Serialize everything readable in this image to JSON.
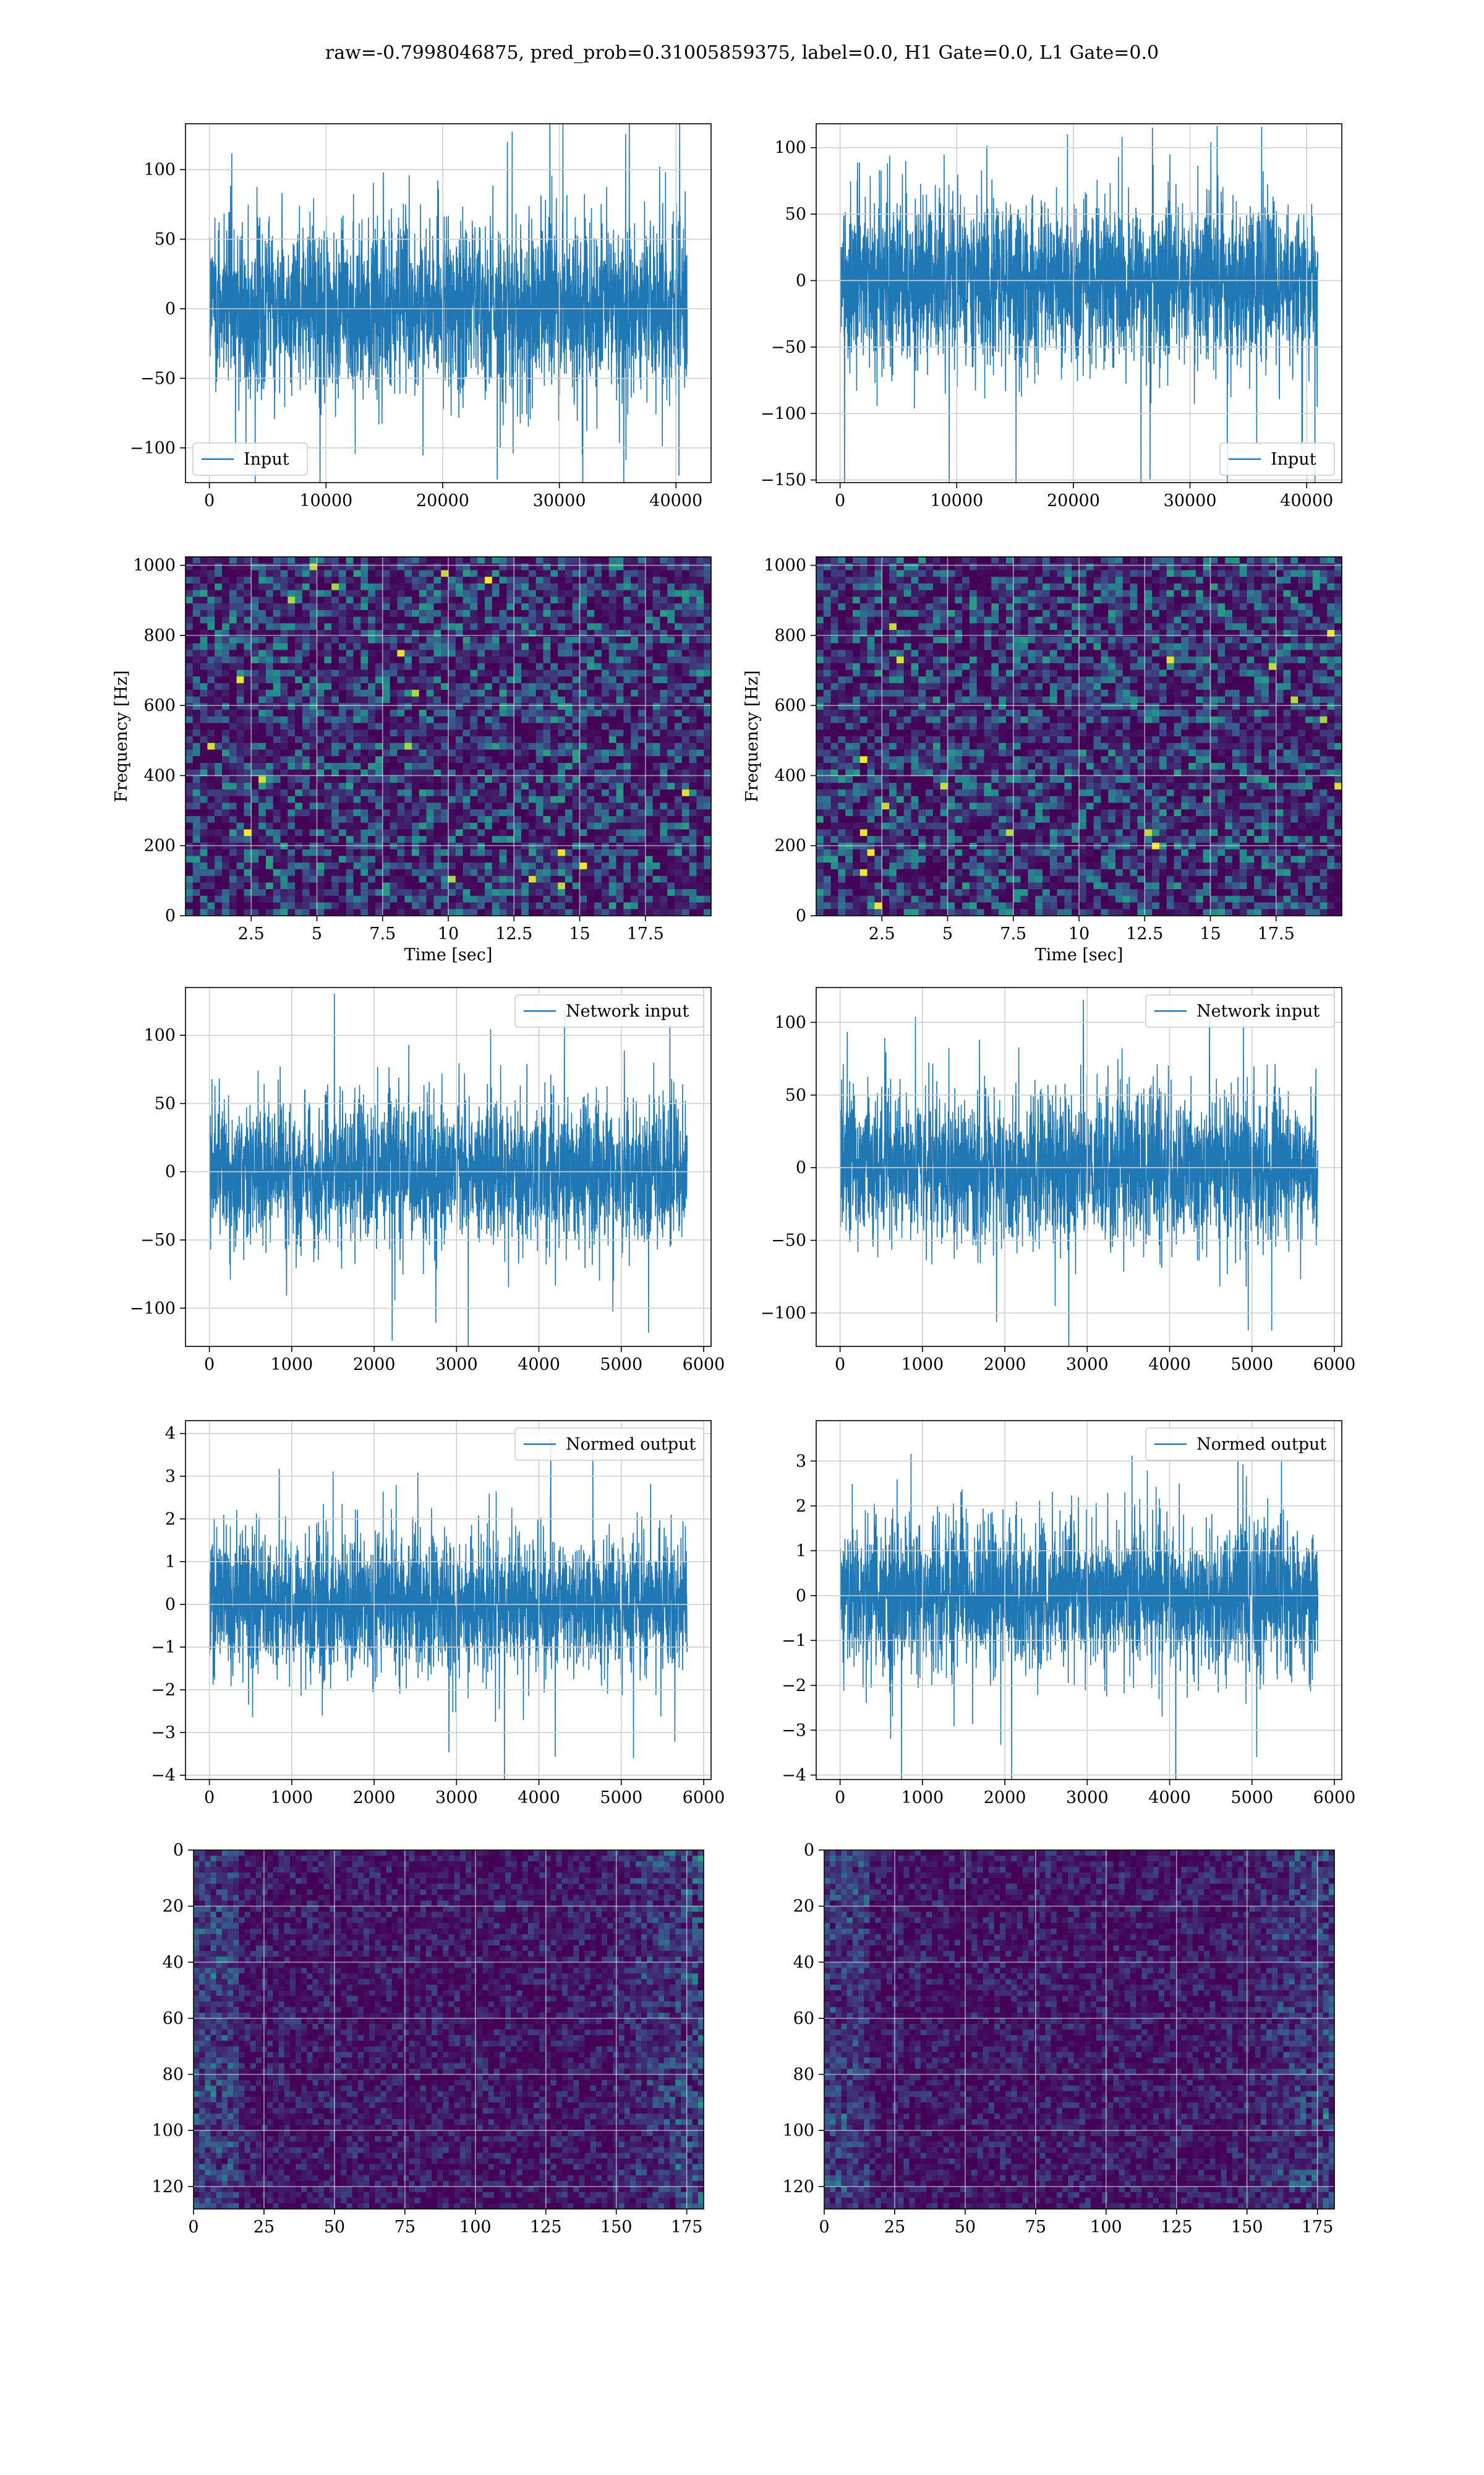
{
  "suptitle": "raw=-0.7998046875, pred_prob=0.31005859375, label=0.0, H1 Gate=0.0, L1 Gate=0.0",
  "colors": {
    "line": "#1f77b4",
    "grid": "#cfcfcf",
    "viridis_dark": "#440154",
    "viridis_mid": "#21918c",
    "viridis_bright": "#fde725"
  },
  "chart_data": [
    {
      "id": "p1",
      "type": "line",
      "legend": "Input",
      "legend_loc": "lower-left",
      "x_range": [
        0,
        40960
      ],
      "amplitude": 30,
      "spikes": [
        120,
        -120
      ],
      "xlim": [
        -2048,
        43008
      ],
      "ylim": [
        -125,
        133
      ],
      "xticks": [
        0,
        10000,
        20000,
        30000,
        40000
      ],
      "yticks": [
        -100,
        -50,
        0,
        50,
        100
      ],
      "grid": true
    },
    {
      "id": "p2",
      "type": "line",
      "legend": "Input",
      "legend_loc": "lower-right",
      "x_range": [
        0,
        40960
      ],
      "amplitude": 30,
      "spikes": [
        115,
        -138
      ],
      "xlim": [
        -2048,
        43008
      ],
      "ylim": [
        -152,
        118
      ],
      "xticks": [
        0,
        10000,
        20000,
        30000,
        40000
      ],
      "yticks": [
        -150,
        -100,
        -50,
        0,
        50,
        100
      ],
      "grid": true
    },
    {
      "id": "p3",
      "type": "heatmap",
      "xlabel": "Time [sec]",
      "ylabel": "Frequency [Hz]",
      "xlim": [
        0,
        20
      ],
      "ylim": [
        0,
        1024
      ],
      "xticks": [
        2.5,
        5.0,
        7.5,
        10.0,
        12.5,
        15.0,
        17.5
      ],
      "yticks": [
        0,
        200,
        400,
        600,
        800,
        1000
      ],
      "grid": true
    },
    {
      "id": "p4",
      "type": "heatmap",
      "xlabel": "Time [sec]",
      "ylabel": "Frequency [Hz]",
      "xlim": [
        0,
        20
      ],
      "ylim": [
        0,
        1024
      ],
      "xticks": [
        2.5,
        5.0,
        7.5,
        10.0,
        12.5,
        15.0,
        17.5
      ],
      "yticks": [
        0,
        200,
        400,
        600,
        800,
        1000
      ],
      "grid": true
    },
    {
      "id": "p5",
      "type": "line",
      "legend": "Network input",
      "legend_loc": "upper-right",
      "x_range": [
        0,
        5800
      ],
      "amplitude": 25,
      "spikes": [
        118,
        -118
      ],
      "xlim": [
        -290,
        6090
      ],
      "ylim": [
        -128,
        135
      ],
      "xticks": [
        0,
        1000,
        2000,
        3000,
        4000,
        5000,
        6000
      ],
      "yticks": [
        -100,
        -50,
        0,
        50,
        100
      ],
      "grid": true
    },
    {
      "id": "p6",
      "type": "line",
      "legend": "Network input",
      "legend_loc": "upper-right",
      "x_range": [
        0,
        5800
      ],
      "amplitude": 25,
      "spikes": [
        112,
        -112
      ],
      "xlim": [
        -290,
        6090
      ],
      "ylim": [
        -123,
        124
      ],
      "xticks": [
        0,
        1000,
        2000,
        3000,
        4000,
        5000,
        6000
      ],
      "yticks": [
        -100,
        -50,
        0,
        50,
        100
      ],
      "grid": true
    },
    {
      "id": "p7",
      "type": "line",
      "legend": "Normed output",
      "legend_loc": "upper-right",
      "x_range": [
        0,
        5800
      ],
      "amplitude": 0.8,
      "spikes": [
        3.9,
        -3.6
      ],
      "xlim": [
        -290,
        6090
      ],
      "ylim": [
        -4.1,
        4.3
      ],
      "xticks": [
        0,
        1000,
        2000,
        3000,
        4000,
        5000,
        6000
      ],
      "yticks": [
        -4,
        -3,
        -2,
        -1,
        0,
        1,
        2,
        3,
        4
      ],
      "grid": true
    },
    {
      "id": "p8",
      "type": "line",
      "legend": "Normed output",
      "legend_loc": "upper-right",
      "x_range": [
        0,
        5800
      ],
      "amplitude": 0.8,
      "spikes": [
        3.6,
        -3.6
      ],
      "xlim": [
        -290,
        6090
      ],
      "ylim": [
        -4.1,
        3.9
      ],
      "xticks": [
        0,
        1000,
        2000,
        3000,
        4000,
        5000,
        6000
      ],
      "yticks": [
        -4,
        -3,
        -2,
        -1,
        0,
        1,
        2,
        3
      ],
      "grid": true
    },
    {
      "id": "p9",
      "type": "heatmap",
      "inverted_y": true,
      "xlim": [
        0,
        181
      ],
      "ylim": [
        128,
        0
      ],
      "xticks": [
        0,
        25,
        50,
        75,
        100,
        125,
        150,
        175
      ],
      "yticks": [
        0,
        20,
        40,
        60,
        80,
        100,
        120
      ],
      "grid": true
    },
    {
      "id": "p10",
      "type": "heatmap",
      "inverted_y": true,
      "xlim": [
        0,
        181
      ],
      "ylim": [
        128,
        0
      ],
      "xticks": [
        0,
        25,
        50,
        75,
        100,
        125,
        150,
        175
      ],
      "yticks": [
        0,
        20,
        40,
        60,
        80,
        100,
        120
      ],
      "grid": true
    }
  ]
}
